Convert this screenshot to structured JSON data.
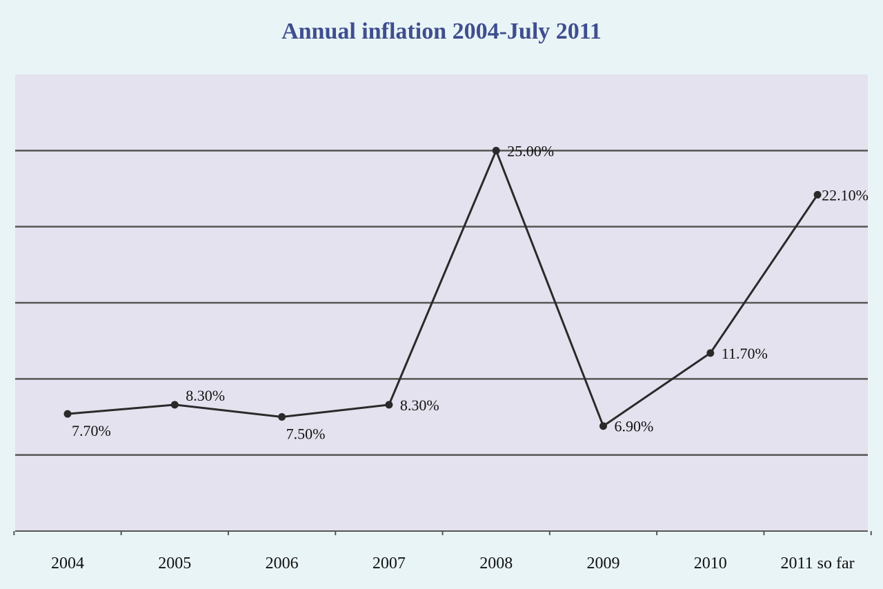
{
  "chart_data": {
    "type": "line",
    "title": "Annual inflation 2004-July 2011",
    "xlabel": "",
    "ylabel": "",
    "categories": [
      "2004",
      "2005",
      "2006",
      "2007",
      "2008",
      "2009",
      "2010",
      "2011 so far"
    ],
    "series": [
      {
        "values": [
          7.7,
          8.3,
          7.5,
          8.3,
          25.0,
          6.9,
          11.7,
          22.1
        ],
        "labels": [
          "7.70%",
          "8.30%",
          "7.50%",
          "8.30%",
          "25.00%",
          "6.90%",
          "11.70%",
          "22.10%"
        ]
      }
    ],
    "ylim": [
      0,
      30
    ],
    "grid": true,
    "legend": "none",
    "colors": {
      "page_background": "#e9f4f6",
      "plot_background": "#e4e2ee",
      "title": "#3f4e8f",
      "line": "#2a2a2a",
      "gridline": "#555555",
      "text": "#111111"
    }
  }
}
